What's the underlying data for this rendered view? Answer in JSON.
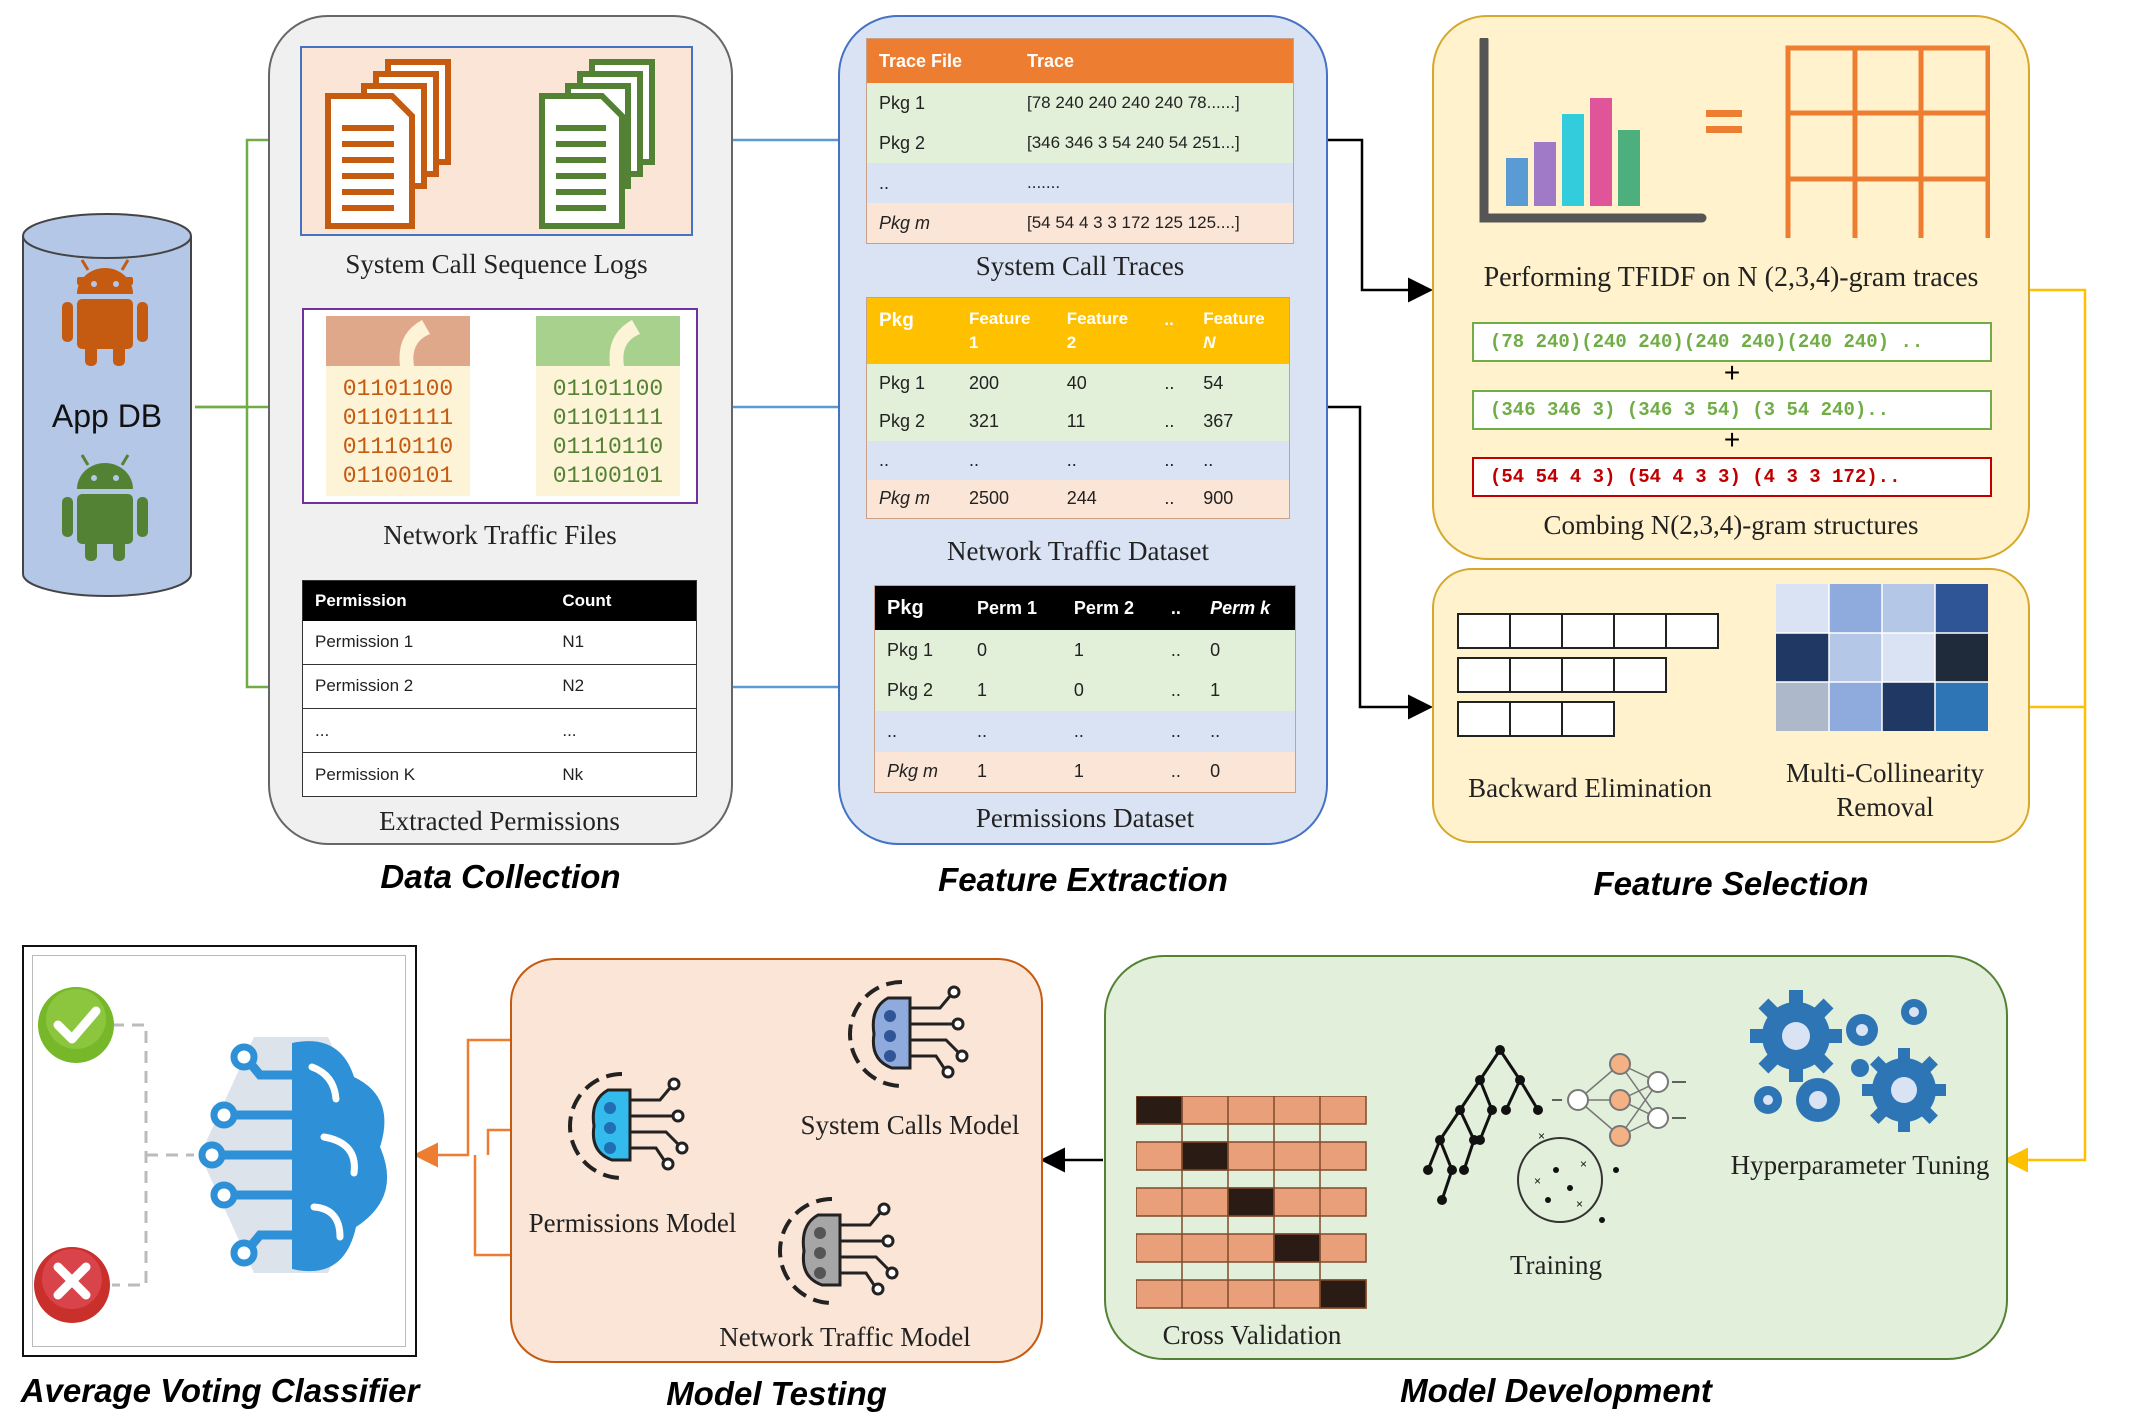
{
  "app_db": {
    "label": "App DB"
  },
  "data_collection": {
    "title": "Data Collection",
    "syscall_logs_caption": "System Call Sequence Logs",
    "network_files_caption": "Network Traffic Files",
    "binary_lines": [
      "01101100",
      "01101111",
      "01110110",
      "01100101"
    ],
    "permissions_caption": "Extracted Permissions",
    "permissions_table": {
      "headers": [
        "Permission",
        "Count"
      ],
      "rows": [
        [
          "Permission 1",
          "N1"
        ],
        [
          "Permission 2",
          "N2"
        ],
        [
          "...",
          "..."
        ],
        [
          "Permission K",
          "Nk"
        ]
      ]
    }
  },
  "feature_extraction": {
    "title": "Feature Extraction",
    "traces_caption": "System Call Traces",
    "traces_table": {
      "headers": [
        "Trace File",
        "Trace"
      ],
      "rows": [
        [
          "Pkg 1",
          "[78 240 240 240 240 78......]"
        ],
        [
          "Pkg 2",
          "[346 346 3 54 240 54 251...]"
        ],
        [
          "..",
          "......."
        ],
        [
          "Pkg m",
          "[54 54 4 3 3 172 125 125....]"
        ]
      ]
    },
    "network_caption": "Network Traffic Dataset",
    "network_table": {
      "headers": [
        [
          "Pkg"
        ],
        [
          "Feature",
          "1"
        ],
        [
          "Feature",
          "2"
        ],
        [
          ".."
        ],
        [
          "Feature",
          "N"
        ]
      ],
      "rows": [
        [
          "Pkg 1",
          "200",
          "40",
          "..",
          "54"
        ],
        [
          "Pkg 2",
          "321",
          "11",
          "..",
          "367"
        ],
        [
          "..",
          "..",
          "..",
          "..",
          ".."
        ],
        [
          "Pkg m",
          "2500",
          "244",
          "..",
          "900"
        ]
      ]
    },
    "permissions_caption": "Permissions Dataset",
    "permissions_table": {
      "headers": [
        "Pkg",
        "Perm 1",
        "Perm 2",
        "..",
        "Perm k"
      ],
      "rows": [
        [
          "Pkg 1",
          "0",
          "1",
          "..",
          "0"
        ],
        [
          "Pkg 2",
          "1",
          "0",
          "..",
          "1"
        ],
        [
          "..",
          "..",
          "..",
          "..",
          ".."
        ],
        [
          "Pkg m",
          "1",
          "1",
          "..",
          "0"
        ]
      ]
    }
  },
  "feature_selection": {
    "title": "Feature Selection",
    "tfidf_caption": "Performing TFIDF on N (2,3,4)-gram traces",
    "grams": [
      "(78 240)(240 240)(240 240)(240 240) ..",
      "(346 346 3) (346 3 54) (3 54 240)..",
      "(54 54 4 3) (54 4 3 3) (4 3 3 172).."
    ],
    "plus": "+",
    "equals": "=",
    "combine_caption": "Combing N(2,3,4)-gram structures",
    "backward_caption": "Backward Elimination",
    "collinearity_caption": [
      "Multi-Collinearity",
      "Removal"
    ]
  },
  "model_development": {
    "title": "Model Development",
    "cross_validation_caption": "Cross Validation",
    "training_caption": "Training",
    "hyperparameter_caption": "Hyperparameter Tuning"
  },
  "model_testing": {
    "title": "Model Testing",
    "system_calls_model": "System Calls Model",
    "permissions_model": "Permissions Model",
    "network_model": "Network Traffic Model"
  },
  "voting": {
    "title": "Average Voting Classifier"
  },
  "colors": {
    "orange": "#c55a11",
    "green": "#548235",
    "blue_arrow": "#5b9bd5",
    "gold": "#ffc000",
    "header_orange": "#ed7d31"
  }
}
